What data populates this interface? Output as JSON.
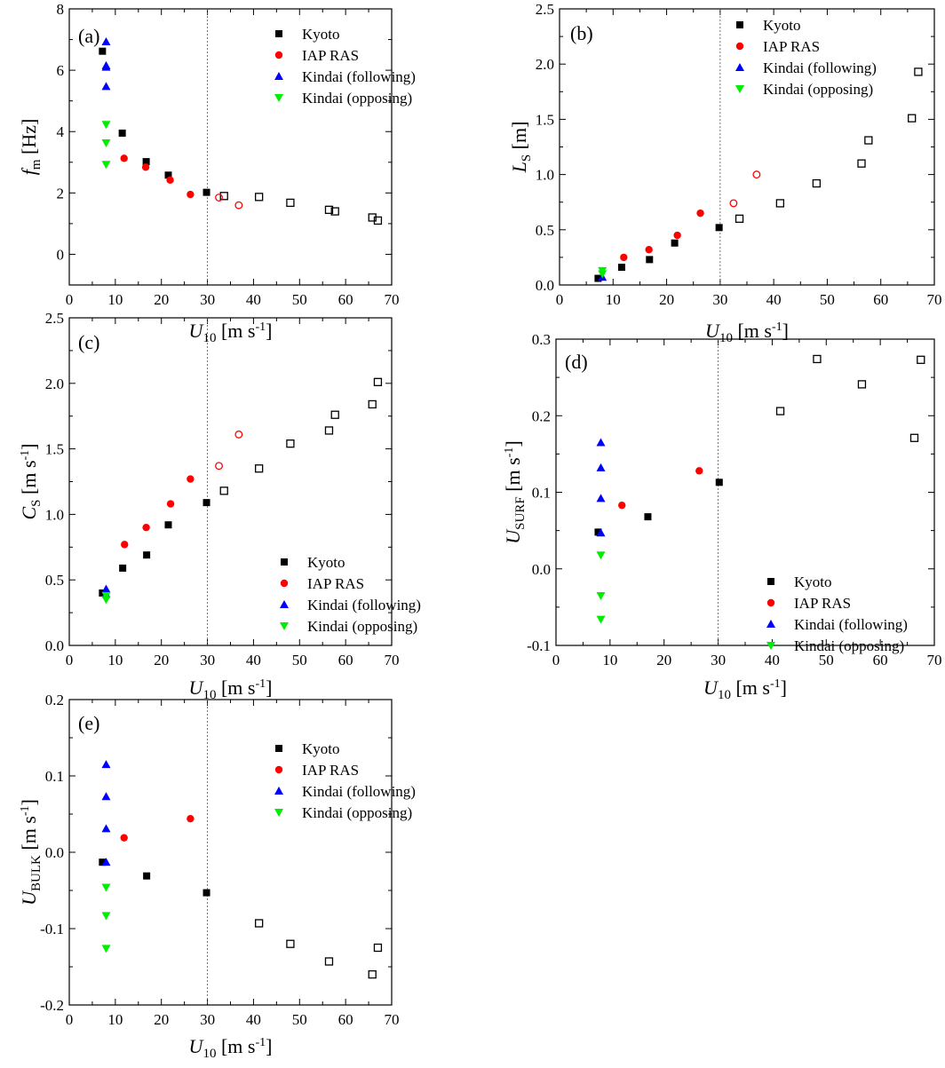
{
  "chart_data": [
    {
      "type": "scatter",
      "panel_label": "(a)",
      "xlabel": {
        "main": "U",
        "sub": "10",
        "unit": " [m s",
        "unit_sup": "-1",
        "unit_end": "]"
      },
      "ylabel": {
        "main": "f",
        "sub": "m",
        "unit": " [Hz]",
        "unit_sup": "",
        "unit_end": ""
      },
      "xlim": [
        0,
        70
      ],
      "ylim": [
        -1,
        8
      ],
      "xticks": [
        0,
        10,
        20,
        30,
        40,
        50,
        60,
        70
      ],
      "yticks": [
        0,
        2,
        4,
        6,
        8
      ],
      "ytick_labels": [
        "0",
        "2",
        "4",
        "6",
        "8"
      ],
      "vline_x": 30,
      "legend_position": "top-right",
      "series": [
        {
          "name": "Kyoto",
          "marker": "square",
          "color": "#000000",
          "points": [
            [
              7.2,
              6.62
            ],
            [
              11.5,
              3.95
            ],
            [
              16.7,
              3.02
            ],
            [
              21.5,
              2.58
            ],
            [
              29.8,
              2.02
            ]
          ],
          "open_points": [
            [
              33.6,
              1.9
            ],
            [
              41.2,
              1.87
            ],
            [
              48,
              1.68
            ],
            [
              56.4,
              1.45
            ],
            [
              57.7,
              1.4
            ],
            [
              65.8,
              1.2
            ],
            [
              67,
              1.1
            ]
          ]
        },
        {
          "name": "IAP RAS",
          "marker": "circle",
          "color": "#ff0000",
          "points": [
            [
              11.9,
              3.13
            ],
            [
              16.6,
              2.84
            ],
            [
              21.9,
              2.42
            ],
            [
              26.3,
              1.95
            ]
          ],
          "open_points": [
            [
              32.5,
              1.85
            ],
            [
              36.8,
              1.6
            ]
          ]
        },
        {
          "name": "Kindai (following)",
          "marker": "triangle-up",
          "color": "#0000ff",
          "points": [
            [
              8,
              6.93
            ],
            [
              8,
              6.15
            ],
            [
              8,
              6.1
            ],
            [
              8,
              5.47
            ]
          ],
          "open_points": []
        },
        {
          "name": "Kindai (opposing)",
          "marker": "triangle-down",
          "color": "#00ee00",
          "points": [
            [
              8,
              4.23
            ],
            [
              8,
              3.63
            ],
            [
              8,
              2.93
            ]
          ],
          "open_points": []
        }
      ]
    },
    {
      "type": "scatter",
      "panel_label": "(b)",
      "xlabel": {
        "main": "U",
        "sub": "10",
        "unit": " [m s",
        "unit_sup": "-1",
        "unit_end": "]"
      },
      "ylabel": {
        "main": "L",
        "sub": "S",
        "unit": " [m]",
        "unit_sup": "",
        "unit_end": ""
      },
      "xlim": [
        0,
        70
      ],
      "ylim": [
        0,
        2.5
      ],
      "xticks": [
        0,
        10,
        20,
        30,
        40,
        50,
        60,
        70
      ],
      "yticks": [
        0,
        0.5,
        1,
        1.5,
        2,
        2.5
      ],
      "ytick_labels": [
        "0.0",
        "0.5",
        "1.0",
        "1.5",
        "2.0",
        "2.5"
      ],
      "vline_x": 30,
      "legend_position": "top-right",
      "series": [
        {
          "name": "Kyoto",
          "marker": "square",
          "color": "#000000",
          "points": [
            [
              7.2,
              0.06
            ],
            [
              11.6,
              0.16
            ],
            [
              16.8,
              0.23
            ],
            [
              21.5,
              0.38
            ],
            [
              29.8,
              0.52
            ]
          ],
          "open_points": [
            [
              33.6,
              0.6
            ],
            [
              41.2,
              0.74
            ],
            [
              48,
              0.92
            ],
            [
              56.4,
              1.1
            ],
            [
              57.7,
              1.31
            ],
            [
              65.8,
              1.51
            ],
            [
              67,
              1.93
            ]
          ]
        },
        {
          "name": "IAP RAS",
          "marker": "circle",
          "color": "#ff0000",
          "points": [
            [
              12,
              0.25
            ],
            [
              16.7,
              0.32
            ],
            [
              22,
              0.45
            ],
            [
              26.3,
              0.65
            ]
          ],
          "open_points": [
            [
              32.5,
              0.74
            ],
            [
              36.8,
              1.0
            ]
          ]
        },
        {
          "name": "Kindai (following)",
          "marker": "triangle-up",
          "color": "#0000ff",
          "points": [
            [
              8,
              0.07
            ]
          ],
          "open_points": []
        },
        {
          "name": "Kindai (opposing)",
          "marker": "triangle-down",
          "color": "#00ee00",
          "points": [
            [
              8,
              0.13
            ],
            [
              8,
              0.1
            ]
          ],
          "open_points": []
        }
      ]
    },
    {
      "type": "scatter",
      "panel_label": "(c)",
      "xlabel": {
        "main": "U",
        "sub": "10",
        "unit": " [m s",
        "unit_sup": "-1",
        "unit_end": "]"
      },
      "ylabel": {
        "main": "C",
        "sub": "S",
        "unit": " [m s",
        "unit_sup": "-1",
        "unit_end": "]"
      },
      "xlim": [
        0,
        70
      ],
      "ylim": [
        0,
        2.5
      ],
      "xticks": [
        0,
        10,
        20,
        30,
        40,
        50,
        60,
        70
      ],
      "yticks": [
        0,
        0.5,
        1,
        1.5,
        2,
        2.5
      ],
      "ytick_labels": [
        "0.0",
        "0.5",
        "1.0",
        "1.5",
        "2.0",
        "2.5"
      ],
      "vline_x": 30,
      "legend_position": "bottom-right",
      "series": [
        {
          "name": "Kyoto",
          "marker": "square",
          "color": "#000000",
          "points": [
            [
              7.2,
              0.4
            ],
            [
              11.6,
              0.59
            ],
            [
              16.8,
              0.69
            ],
            [
              21.5,
              0.92
            ],
            [
              29.8,
              1.09
            ]
          ],
          "open_points": [
            [
              33.6,
              1.18
            ],
            [
              41.2,
              1.35
            ],
            [
              48,
              1.54
            ],
            [
              56.4,
              1.64
            ],
            [
              57.7,
              1.76
            ],
            [
              65.8,
              1.84
            ],
            [
              67,
              2.01
            ]
          ]
        },
        {
          "name": "IAP RAS",
          "marker": "circle",
          "color": "#ff0000",
          "points": [
            [
              12,
              0.77
            ],
            [
              16.7,
              0.9
            ],
            [
              22,
              1.08
            ],
            [
              26.3,
              1.27
            ]
          ],
          "open_points": [
            [
              32.5,
              1.37
            ],
            [
              36.8,
              1.61
            ]
          ]
        },
        {
          "name": "Kindai (following)",
          "marker": "triangle-up",
          "color": "#0000ff",
          "points": [
            [
              8,
              0.43
            ],
            [
              8,
              0.39
            ]
          ],
          "open_points": []
        },
        {
          "name": "Kindai (opposing)",
          "marker": "triangle-down",
          "color": "#00ee00",
          "points": [
            [
              8,
              0.38
            ],
            [
              8,
              0.35
            ]
          ],
          "open_points": []
        }
      ]
    },
    {
      "type": "scatter",
      "panel_label": "(d)",
      "xlabel": {
        "main": "U",
        "sub": "10",
        "unit": " [m s",
        "unit_sup": "-1",
        "unit_end": "]"
      },
      "ylabel": {
        "main": "U",
        "sub": "SURF",
        "unit": " [m s",
        "unit_sup": "-1",
        "unit_end": "]"
      },
      "xlim": [
        0,
        70
      ],
      "ylim": [
        -0.1,
        0.3
      ],
      "xticks": [
        0,
        10,
        20,
        30,
        40,
        50,
        60,
        70
      ],
      "yticks": [
        -0.1,
        0,
        0.1,
        0.2,
        0.3
      ],
      "ytick_labels": [
        "-0.1",
        "0.0",
        "0.1",
        "0.2",
        "0.3"
      ],
      "vline_x": 30,
      "legend_position": "bottom-right",
      "series": [
        {
          "name": "Kyoto",
          "marker": "square",
          "color": "#000000",
          "points": [
            [
              7.8,
              0.048
            ],
            [
              17,
              0.068
            ],
            [
              30.2,
              0.113
            ]
          ],
          "open_points": [
            [
              41.5,
              0.206
            ],
            [
              48.3,
              0.274
            ],
            [
              56.6,
              0.241
            ],
            [
              66.3,
              0.171
            ],
            [
              67.5,
              0.273
            ]
          ]
        },
        {
          "name": "IAP RAS",
          "marker": "circle",
          "color": "#ff0000",
          "points": [
            [
              12.2,
              0.083
            ],
            [
              26.5,
              0.128
            ]
          ],
          "open_points": []
        },
        {
          "name": "Kindai (following)",
          "marker": "triangle-up",
          "color": "#0000ff",
          "points": [
            [
              8.3,
              0.165
            ],
            [
              8.3,
              0.132
            ],
            [
              8.3,
              0.092
            ],
            [
              8.3,
              0.047
            ]
          ],
          "open_points": []
        },
        {
          "name": "Kindai (opposing)",
          "marker": "triangle-down",
          "color": "#00ee00",
          "points": [
            [
              8.3,
              0.018
            ],
            [
              8.3,
              -0.035
            ],
            [
              8.3,
              -0.066
            ]
          ],
          "open_points": []
        }
      ]
    },
    {
      "type": "scatter",
      "panel_label": "(e)",
      "xlabel": {
        "main": "U",
        "sub": "10",
        "unit": " [m s",
        "unit_sup": "-1",
        "unit_end": "]"
      },
      "ylabel": {
        "main": "U",
        "sub": "BULK",
        "unit": " [m s",
        "unit_sup": "-1",
        "unit_end": "]"
      },
      "xlim": [
        0,
        70
      ],
      "ylim": [
        -0.2,
        0.2
      ],
      "xticks": [
        0,
        10,
        20,
        30,
        40,
        50,
        60,
        70
      ],
      "yticks": [
        -0.2,
        -0.1,
        0,
        0.1,
        0.2
      ],
      "ytick_labels": [
        "-0.2",
        "-0.1",
        "0.0",
        "0.1",
        "0.2"
      ],
      "vline_x": 30,
      "legend_position": "top-right",
      "series": [
        {
          "name": "Kyoto",
          "marker": "square",
          "color": "#000000",
          "points": [
            [
              7.2,
              -0.013
            ],
            [
              16.8,
              -0.031
            ],
            [
              29.8,
              -0.053
            ]
          ],
          "open_points": [
            [
              41.2,
              -0.093
            ],
            [
              48,
              -0.12
            ],
            [
              56.4,
              -0.143
            ],
            [
              65.8,
              -0.16
            ],
            [
              67,
              -0.125
            ]
          ]
        },
        {
          "name": "IAP RAS",
          "marker": "circle",
          "color": "#ff0000",
          "points": [
            [
              11.9,
              0.019
            ],
            [
              26.3,
              0.044
            ]
          ],
          "open_points": []
        },
        {
          "name": "Kindai (following)",
          "marker": "triangle-up",
          "color": "#0000ff",
          "points": [
            [
              8,
              0.115
            ],
            [
              8,
              0.073
            ],
            [
              8,
              0.031
            ],
            [
              8,
              -0.013
            ]
          ],
          "open_points": []
        },
        {
          "name": "Kindai (opposing)",
          "marker": "triangle-down",
          "color": "#00ee00",
          "points": [
            [
              8,
              -0.046
            ],
            [
              8,
              -0.083
            ],
            [
              8,
              -0.126
            ]
          ],
          "open_points": []
        }
      ]
    }
  ]
}
